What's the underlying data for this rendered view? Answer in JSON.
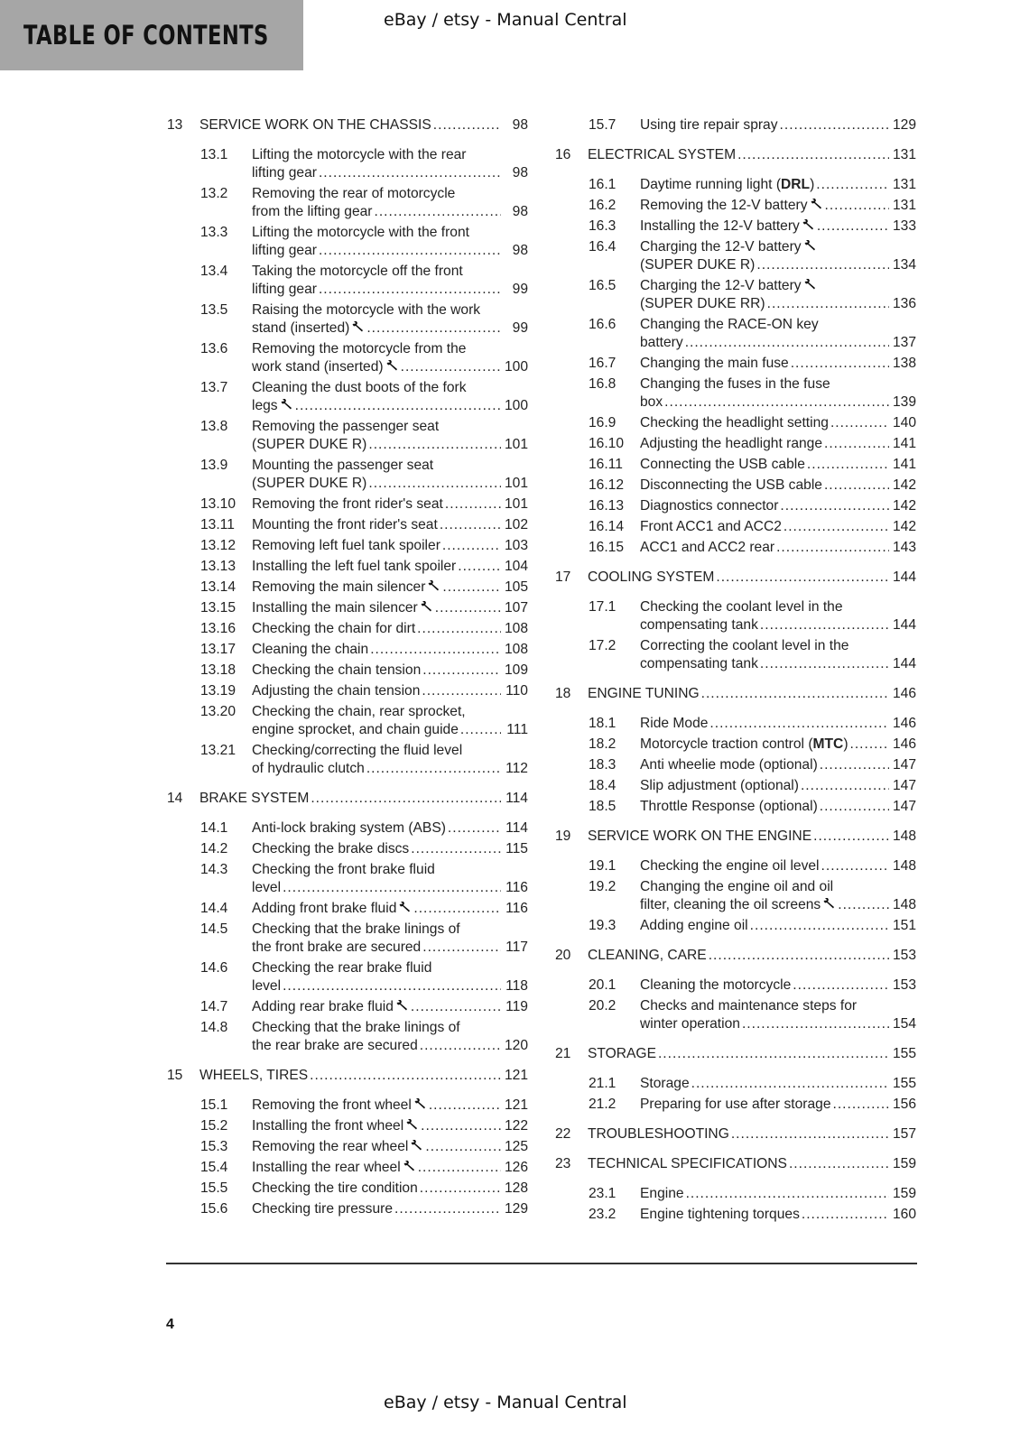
{
  "header": {
    "title": "TABLE OF CONTENTS",
    "watermark_top": "eBay / etsy - Manual Central"
  },
  "footer": {
    "page_number": "4",
    "watermark_bottom": "eBay / etsy - Manual Central"
  },
  "icons": {
    "special_tool": "wrench-icon"
  },
  "columns": [
    [
      {
        "n": "13",
        "chapter": true,
        "lines": [
          "SERVICE WORK ON THE CHASSIS"
        ],
        "page": "98"
      },
      {
        "n": "13.1",
        "lines": [
          "Lifting the motorcycle with the rear",
          "lifting gear"
        ],
        "page": "98"
      },
      {
        "n": "13.2",
        "lines": [
          "Removing the rear of motorcycle",
          "from the lifting gear"
        ],
        "page": "98"
      },
      {
        "n": "13.3",
        "lines": [
          "Lifting the motorcycle with the front",
          "lifting gear"
        ],
        "page": "98"
      },
      {
        "n": "13.4",
        "lines": [
          "Taking the motorcycle off the front",
          "lifting gear"
        ],
        "page": "99"
      },
      {
        "n": "13.5",
        "lines": [
          "Raising the motorcycle with the work",
          "stand (inserted)"
        ],
        "wrench": 1,
        "page": "99"
      },
      {
        "n": "13.6",
        "lines": [
          "Removing the motorcycle from the",
          "work stand (inserted)"
        ],
        "wrench": 1,
        "page": "100"
      },
      {
        "n": "13.7",
        "lines": [
          "Cleaning the dust boots of the fork",
          "legs"
        ],
        "wrench": 1,
        "page": "100"
      },
      {
        "n": "13.8",
        "lines": [
          "Removing the passenger seat",
          "(SUPER DUKE R)"
        ],
        "page": "101"
      },
      {
        "n": "13.9",
        "lines": [
          "Mounting the passenger seat",
          "(SUPER DUKE R)"
        ],
        "page": "101"
      },
      {
        "n": "13.10",
        "lines": [
          "Removing the front rider's seat"
        ],
        "page": "101"
      },
      {
        "n": "13.11",
        "lines": [
          "Mounting the front rider's seat"
        ],
        "page": "102"
      },
      {
        "n": "13.12",
        "lines": [
          "Removing left fuel tank spoiler"
        ],
        "page": "103"
      },
      {
        "n": "13.13",
        "lines": [
          "Installing the left fuel tank spoiler"
        ],
        "page": "104"
      },
      {
        "n": "13.14",
        "lines": [
          "Removing the main silencer"
        ],
        "wrench": 0,
        "page": "105"
      },
      {
        "n": "13.15",
        "lines": [
          "Installing the main silencer"
        ],
        "wrench": 0,
        "page": "107"
      },
      {
        "n": "13.16",
        "lines": [
          "Checking the chain for dirt"
        ],
        "page": "108"
      },
      {
        "n": "13.17",
        "lines": [
          "Cleaning the chain"
        ],
        "page": "108"
      },
      {
        "n": "13.18",
        "lines": [
          "Checking the chain tension"
        ],
        "page": "109"
      },
      {
        "n": "13.19",
        "lines": [
          "Adjusting the chain tension"
        ],
        "page": "110"
      },
      {
        "n": "13.20",
        "lines": [
          "Checking the chain, rear sprocket,",
          "engine sprocket, and chain guide"
        ],
        "page": "111"
      },
      {
        "n": "13.21",
        "lines": [
          "Checking/correcting the fluid level",
          "of hydraulic clutch"
        ],
        "page": "112"
      },
      {
        "n": "14",
        "chapter": true,
        "lines": [
          "BRAKE SYSTEM"
        ],
        "page": "114"
      },
      {
        "n": "14.1",
        "lines": [
          "Anti-lock braking system (ABS)"
        ],
        "page": "114"
      },
      {
        "n": "14.2",
        "lines": [
          "Checking the brake discs"
        ],
        "page": "115"
      },
      {
        "n": "14.3",
        "lines": [
          "Checking the front brake fluid",
          "level"
        ],
        "page": "116"
      },
      {
        "n": "14.4",
        "lines": [
          "Adding front brake fluid"
        ],
        "wrench": 0,
        "page": "116"
      },
      {
        "n": "14.5",
        "lines": [
          "Checking that the brake linings of",
          "the front brake are secured"
        ],
        "page": "117"
      },
      {
        "n": "14.6",
        "lines": [
          "Checking the rear brake fluid",
          "level"
        ],
        "page": "118"
      },
      {
        "n": "14.7",
        "lines": [
          "Adding rear brake fluid"
        ],
        "wrench": 0,
        "page": "119"
      },
      {
        "n": "14.8",
        "lines": [
          "Checking that the brake linings of",
          "the rear brake are secured"
        ],
        "page": "120"
      },
      {
        "n": "15",
        "chapter": true,
        "lines": [
          "WHEELS, TIRES"
        ],
        "page": "121"
      },
      {
        "n": "15.1",
        "lines": [
          "Removing the front wheel"
        ],
        "wrench": 0,
        "page": "121"
      },
      {
        "n": "15.2",
        "lines": [
          "Installing the front wheel"
        ],
        "wrench": 0,
        "page": "122"
      },
      {
        "n": "15.3",
        "lines": [
          "Removing the rear wheel"
        ],
        "wrench": 0,
        "page": "125"
      },
      {
        "n": "15.4",
        "lines": [
          "Installing the rear wheel"
        ],
        "wrench": 0,
        "page": "126"
      },
      {
        "n": "15.5",
        "lines": [
          "Checking the tire condition"
        ],
        "page": "128"
      },
      {
        "n": "15.6",
        "lines": [
          "Checking tire pressure"
        ],
        "page": "129"
      }
    ],
    [
      {
        "n": "15.7",
        "lines": [
          "Using tire repair spray"
        ],
        "page": "129"
      },
      {
        "n": "16",
        "chapter": true,
        "lines": [
          "ELECTRICAL SYSTEM"
        ],
        "page": "131"
      },
      {
        "n": "16.1",
        "lines": [
          "Daytime running light ("
        ],
        "bold": "DRL",
        "tail": ")",
        "page": "131"
      },
      {
        "n": "16.2",
        "lines": [
          "Removing the 12-V battery"
        ],
        "wrench": 0,
        "page": "131"
      },
      {
        "n": "16.3",
        "lines": [
          "Installing the 12-V battery"
        ],
        "wrench": 0,
        "page": "133"
      },
      {
        "n": "16.4",
        "lines": [
          "Charging the 12-V battery",
          "(SUPER DUKE R)"
        ],
        "wrench": 0,
        "page": "134"
      },
      {
        "n": "16.5",
        "lines": [
          "Charging the 12-V battery",
          "(SUPER DUKE RR)"
        ],
        "wrench": 0,
        "page": "136"
      },
      {
        "n": "16.6",
        "lines": [
          "Changing the RACE-ON key",
          "battery"
        ],
        "page": "137"
      },
      {
        "n": "16.7",
        "lines": [
          "Changing the main fuse"
        ],
        "page": "138"
      },
      {
        "n": "16.8",
        "lines": [
          "Changing the fuses in the fuse",
          "box"
        ],
        "page": "139"
      },
      {
        "n": "16.9",
        "lines": [
          "Checking the headlight setting"
        ],
        "page": "140"
      },
      {
        "n": "16.10",
        "lines": [
          "Adjusting the headlight range"
        ],
        "page": "141"
      },
      {
        "n": "16.11",
        "lines": [
          "Connecting the USB cable"
        ],
        "page": "141"
      },
      {
        "n": "16.12",
        "lines": [
          "Disconnecting the USB cable"
        ],
        "page": "142"
      },
      {
        "n": "16.13",
        "lines": [
          "Diagnostics connector"
        ],
        "page": "142"
      },
      {
        "n": "16.14",
        "lines": [
          "Front ACC1 and ACC2"
        ],
        "page": "142"
      },
      {
        "n": "16.15",
        "lines": [
          "ACC1 and ACC2 rear"
        ],
        "page": "143"
      },
      {
        "n": "17",
        "chapter": true,
        "lines": [
          "COOLING SYSTEM"
        ],
        "page": "144"
      },
      {
        "n": "17.1",
        "lines": [
          "Checking the coolant level in the",
          "compensating tank"
        ],
        "page": "144"
      },
      {
        "n": "17.2",
        "lines": [
          "Correcting the coolant level in the",
          "compensating tank"
        ],
        "page": "144"
      },
      {
        "n": "18",
        "chapter": true,
        "lines": [
          "ENGINE TUNING"
        ],
        "page": "146"
      },
      {
        "n": "18.1",
        "lines": [
          "Ride Mode"
        ],
        "page": "146"
      },
      {
        "n": "18.2",
        "lines": [
          "Motorcycle traction control ("
        ],
        "bold": "MTC",
        "tail": ")",
        "page": "146"
      },
      {
        "n": "18.3",
        "lines": [
          "Anti wheelie mode (optional)"
        ],
        "page": "147"
      },
      {
        "n": "18.4",
        "lines": [
          "Slip adjustment (optional)"
        ],
        "page": "147"
      },
      {
        "n": "18.5",
        "lines": [
          "Throttle Response (optional)"
        ],
        "page": "147"
      },
      {
        "n": "19",
        "chapter": true,
        "lines": [
          "SERVICE WORK ON THE ENGINE"
        ],
        "page": "148"
      },
      {
        "n": "19.1",
        "lines": [
          "Checking the engine oil level"
        ],
        "page": "148"
      },
      {
        "n": "19.2",
        "lines": [
          "Changing the engine oil and oil",
          "filter, cleaning the oil screens"
        ],
        "wrench": 1,
        "page": "148"
      },
      {
        "n": "19.3",
        "lines": [
          "Adding engine oil"
        ],
        "page": "151"
      },
      {
        "n": "20",
        "chapter": true,
        "lines": [
          "CLEANING, CARE"
        ],
        "page": "153"
      },
      {
        "n": "20.1",
        "lines": [
          "Cleaning the motorcycle"
        ],
        "page": "153"
      },
      {
        "n": "20.2",
        "lines": [
          "Checks and maintenance steps for",
          "winter operation"
        ],
        "page": "154"
      },
      {
        "n": "21",
        "chapter": true,
        "lines": [
          "STORAGE"
        ],
        "page": "155"
      },
      {
        "n": "21.1",
        "lines": [
          "Storage"
        ],
        "page": "155"
      },
      {
        "n": "21.2",
        "lines": [
          "Preparing for use after storage"
        ],
        "page": "156"
      },
      {
        "n": "22",
        "chapter": true,
        "lines": [
          "TROUBLESHOOTING"
        ],
        "page": "157"
      },
      {
        "n": "23",
        "chapter": true,
        "lines": [
          "TECHNICAL SPECIFICATIONS"
        ],
        "page": "159"
      },
      {
        "n": "23.1",
        "lines": [
          "Engine"
        ],
        "page": "159"
      },
      {
        "n": "23.2",
        "lines": [
          "Engine tightening torques"
        ],
        "page": "160"
      }
    ]
  ]
}
